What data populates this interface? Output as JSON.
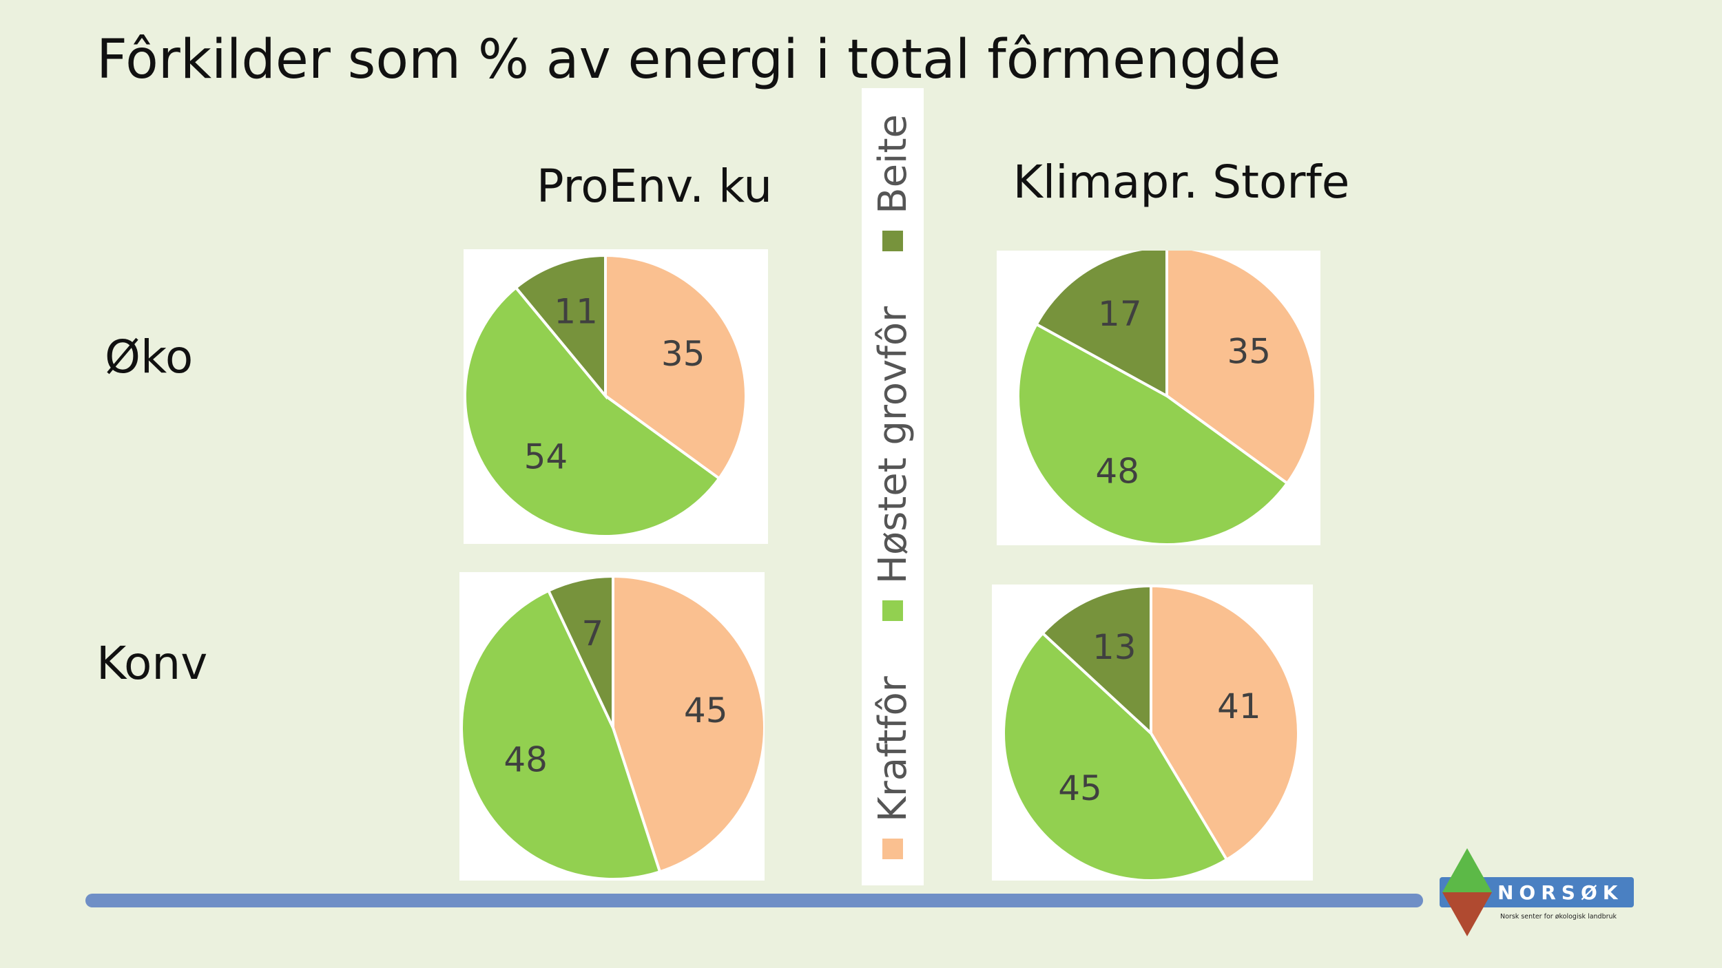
{
  "title": "Fôrkilder som % av energi i total fôrmengde",
  "columns": [
    "ProEnv. ku",
    "Klimapr. Storfe"
  ],
  "rows": [
    "Øko",
    "Konv"
  ],
  "legend": [
    {
      "label": "Kraftfôr",
      "color": "#fac090"
    },
    {
      "label": "Høstet grovfôr",
      "color": "#92d050"
    },
    {
      "label": "Beite",
      "color": "#77933c"
    }
  ],
  "chart_data": [
    {
      "type": "pie",
      "column": "ProEnv. ku",
      "row": "Øko",
      "categories": [
        "Kraftfôr",
        "Høstet grovfôr",
        "Beite"
      ],
      "values": [
        35,
        54,
        11
      ]
    },
    {
      "type": "pie",
      "column": "Klimapr. Storfe",
      "row": "Øko",
      "categories": [
        "Kraftfôr",
        "Høstet grovfôr",
        "Beite"
      ],
      "values": [
        35,
        48,
        17
      ]
    },
    {
      "type": "pie",
      "column": "ProEnv. ku",
      "row": "Konv",
      "categories": [
        "Kraftfôr",
        "Høstet grovfôr",
        "Beite"
      ],
      "values": [
        45,
        48,
        7
      ]
    },
    {
      "type": "pie",
      "column": "Klimapr. Storfe",
      "row": "Konv",
      "categories": [
        "Kraftfôr",
        "Høstet grovfôr",
        "Beite"
      ],
      "values": [
        41,
        45,
        13
      ]
    }
  ],
  "logo": {
    "name": "NORSØK",
    "tagline": "Norsk senter for økologisk landbruk"
  },
  "colors": {
    "background": "#ebf1de",
    "footer_bar": "#6f8fc6",
    "label_text": "#404040"
  }
}
